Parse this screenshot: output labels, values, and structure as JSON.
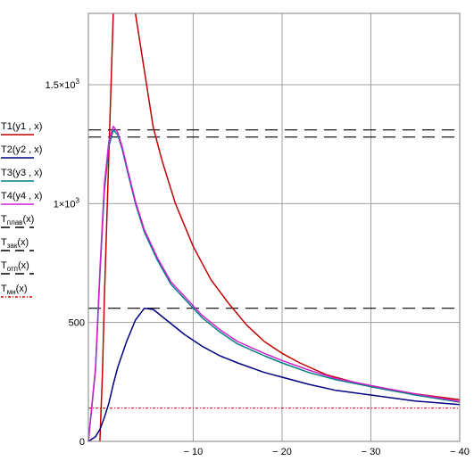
{
  "chart_data": {
    "type": "line",
    "title": "",
    "xlabel": "",
    "ylabel": "",
    "xlim": [
      1.8,
      -40
    ],
    "ylim": [
      0,
      1800
    ],
    "grid": true,
    "legend_position": "left",
    "x_ticks": [
      {
        "value": -10,
        "label": "− 10"
      },
      {
        "value": -20,
        "label": "− 20"
      },
      {
        "value": -30,
        "label": "− 30"
      },
      {
        "value": -40,
        "label": "− 40"
      }
    ],
    "y_ticks": [
      {
        "value": 0,
        "label": "0",
        "sup": ""
      },
      {
        "value": 500,
        "label": "500",
        "sup": ""
      },
      {
        "value": 1000,
        "label": "1×10",
        "sup": "3"
      },
      {
        "value": 1500,
        "label": "1.5×10",
        "sup": "3"
      }
    ],
    "legend": [
      {
        "main": "T1(y1 , x)",
        "sub": "",
        "tail": "",
        "color": "#c00000",
        "dash": ""
      },
      {
        "main": "T2(y2 , x)",
        "sub": "",
        "tail": "",
        "color": "#000080",
        "dash": ""
      },
      {
        "main": "T3(y3 , x)",
        "sub": "",
        "tail": "",
        "color": "#008080",
        "dash": ""
      },
      {
        "main": "T4(y4 , x)",
        "sub": "",
        "tail": "",
        "color": "#d020d0",
        "dash": ""
      },
      {
        "main": "T",
        "sub": "плав",
        "tail": "(x)",
        "color": "#000000",
        "dash": "10,6"
      },
      {
        "main": "T",
        "sub": "зак",
        "tail": "(x)",
        "color": "#000000",
        "dash": "10,6"
      },
      {
        "main": "T",
        "sub": "отп",
        "tail": "(x)",
        "color": "#000000",
        "dash": "10,6"
      },
      {
        "main": "T",
        "sub": "мн",
        "tail": "(x)",
        "color": "#e00000",
        "dash": "3,2,1,2"
      }
    ],
    "series": [
      {
        "color": "#c00000",
        "width": 1.5,
        "x": [
          0.5,
          0.2,
          0.0,
          -0.5,
          -1.0,
          -1.3,
          -3.5,
          -4.5,
          -5.5,
          -6.5,
          -8,
          -10,
          -12,
          -14,
          -16,
          -18,
          -20,
          -22,
          -25,
          -28,
          -30,
          -33,
          -36,
          -40
        ],
        "y": [
          0,
          300,
          600,
          1200,
          1800,
          null,
          1800,
          1560,
          1320,
          1180,
          1000,
          820,
          680,
          580,
          490,
          420,
          370,
          330,
          280,
          250,
          230,
          210,
          195,
          175
        ]
      },
      {
        "color": "#000080",
        "width": 1.5,
        "x": [
          1.8,
          1.0,
          0.5,
          0.0,
          -0.5,
          -1.0,
          -1.5,
          -2.5,
          -3.5,
          -4.5,
          -5.5,
          -7,
          -9,
          -11,
          -13,
          -15,
          -18,
          -20,
          -23,
          -26,
          -30,
          -35,
          -40
        ],
        "y": [
          0,
          20,
          50,
          100,
          160,
          240,
          310,
          420,
          510,
          560,
          555,
          510,
          450,
          400,
          360,
          330,
          290,
          270,
          240,
          215,
          195,
          170,
          155
        ]
      },
      {
        "color": "#008080",
        "width": 1.5,
        "x": [
          1.8,
          1.0,
          0.5,
          0.0,
          -0.5,
          -1.0,
          -1.5,
          -2.0,
          -2.5,
          -3.5,
          -4.5,
          -6,
          -7.5,
          -9,
          -11,
          -13,
          -15,
          -18,
          -20,
          -23,
          -26,
          -30,
          -35,
          -40
        ],
        "y": [
          0,
          300,
          700,
          1050,
          1240,
          1310,
          1290,
          1230,
          1150,
          1000,
          880,
          760,
          660,
          600,
          520,
          460,
          410,
          360,
          330,
          290,
          260,
          230,
          195,
          165
        ]
      },
      {
        "color": "#d020d0",
        "width": 1.5,
        "x": [
          1.8,
          1.0,
          0.5,
          0.0,
          -0.5,
          -1.0,
          -1.5,
          -2.0,
          -2.5,
          -3.5,
          -4.5,
          -6,
          -7.5,
          -9,
          -11,
          -13,
          -15,
          -18,
          -20,
          -23,
          -26,
          -30,
          -35,
          -40
        ],
        "y": [
          0,
          310,
          720,
          1080,
          1260,
          1325,
          1300,
          1240,
          1160,
          1010,
          890,
          770,
          670,
          610,
          530,
          470,
          420,
          370,
          340,
          300,
          265,
          235,
          200,
          168
        ]
      }
    ],
    "hlines": [
      {
        "y": 1310,
        "color": "#000000",
        "dash": "14,8"
      },
      {
        "y": 1280,
        "color": "#000000",
        "dash": "14,8"
      },
      {
        "y": 560,
        "color": "#000000",
        "dash": "14,8"
      },
      {
        "y": 140,
        "color": "#e00000",
        "dash": "3,2,1,2"
      }
    ]
  }
}
